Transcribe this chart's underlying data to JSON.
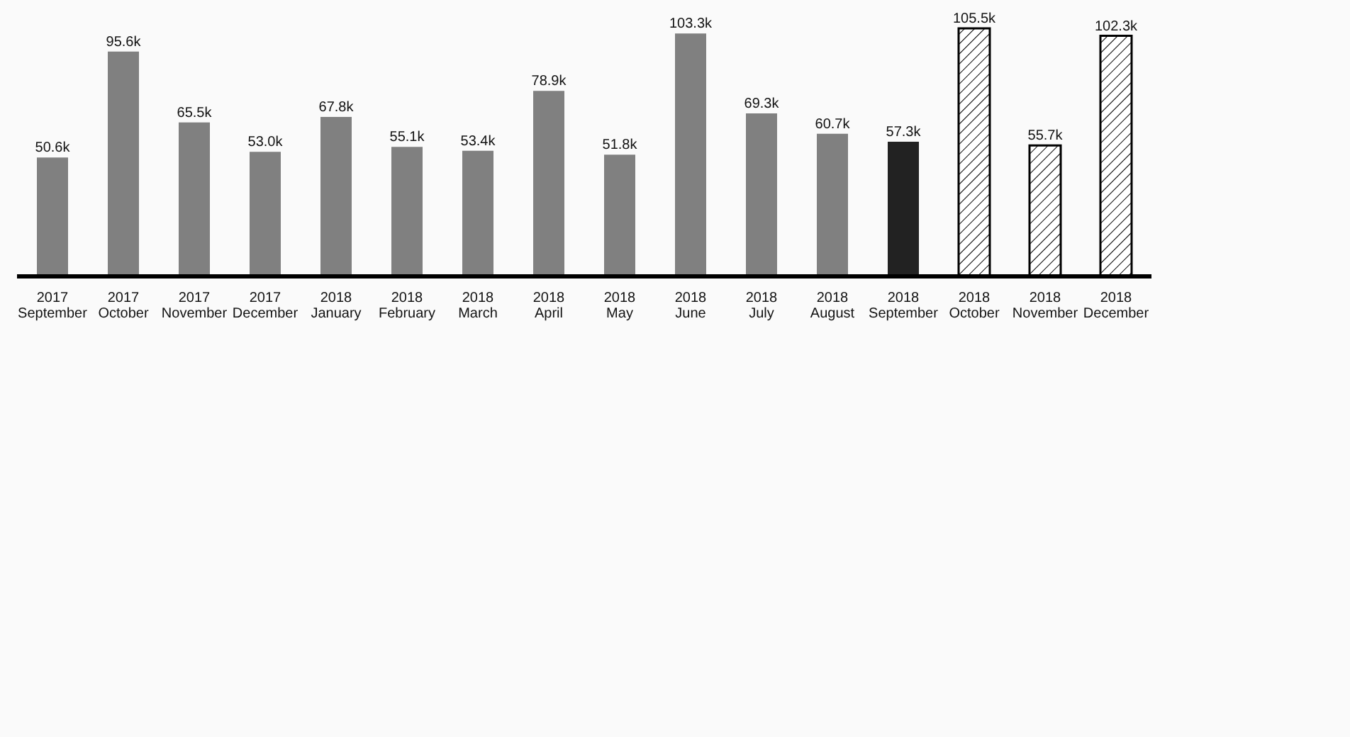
{
  "chart_data": {
    "type": "bar",
    "categories": [
      "2017\nSeptember",
      "2017\nOctober",
      "2017\nNovember",
      "2017\nDecember",
      "2018\nJanuary",
      "2018\nFebruary",
      "2018\nMarch",
      "2018\nApril",
      "2018\nMay",
      "2018\nJune",
      "2018\nJuly",
      "2018\nAugust",
      "2018\nSeptember",
      "2018\nOctober",
      "2018\nNovember",
      "2018\nDecember"
    ],
    "values": [
      50.6,
      95.6,
      65.5,
      53.0,
      67.8,
      55.1,
      53.4,
      78.9,
      51.8,
      103.3,
      69.3,
      60.7,
      57.3,
      105.5,
      55.7,
      102.3
    ],
    "value_labels": [
      "50.6k",
      "95.6k",
      "65.5k",
      "53.0k",
      "67.8k",
      "55.1k",
      "53.4k",
      "78.9k",
      "51.8k",
      "103.3k",
      "69.3k",
      "60.7k",
      "57.3k",
      "105.5k",
      "55.7k",
      "102.3k"
    ],
    "colors": [
      "#808080",
      "#808080",
      "#808080",
      "#808080",
      "#808080",
      "#808080",
      "#808080",
      "#808080",
      "#808080",
      "#808080",
      "#808080",
      "#808080",
      "#222222",
      "#000000",
      "#000000",
      "#000000"
    ],
    "grid": false,
    "legend": false
  }
}
